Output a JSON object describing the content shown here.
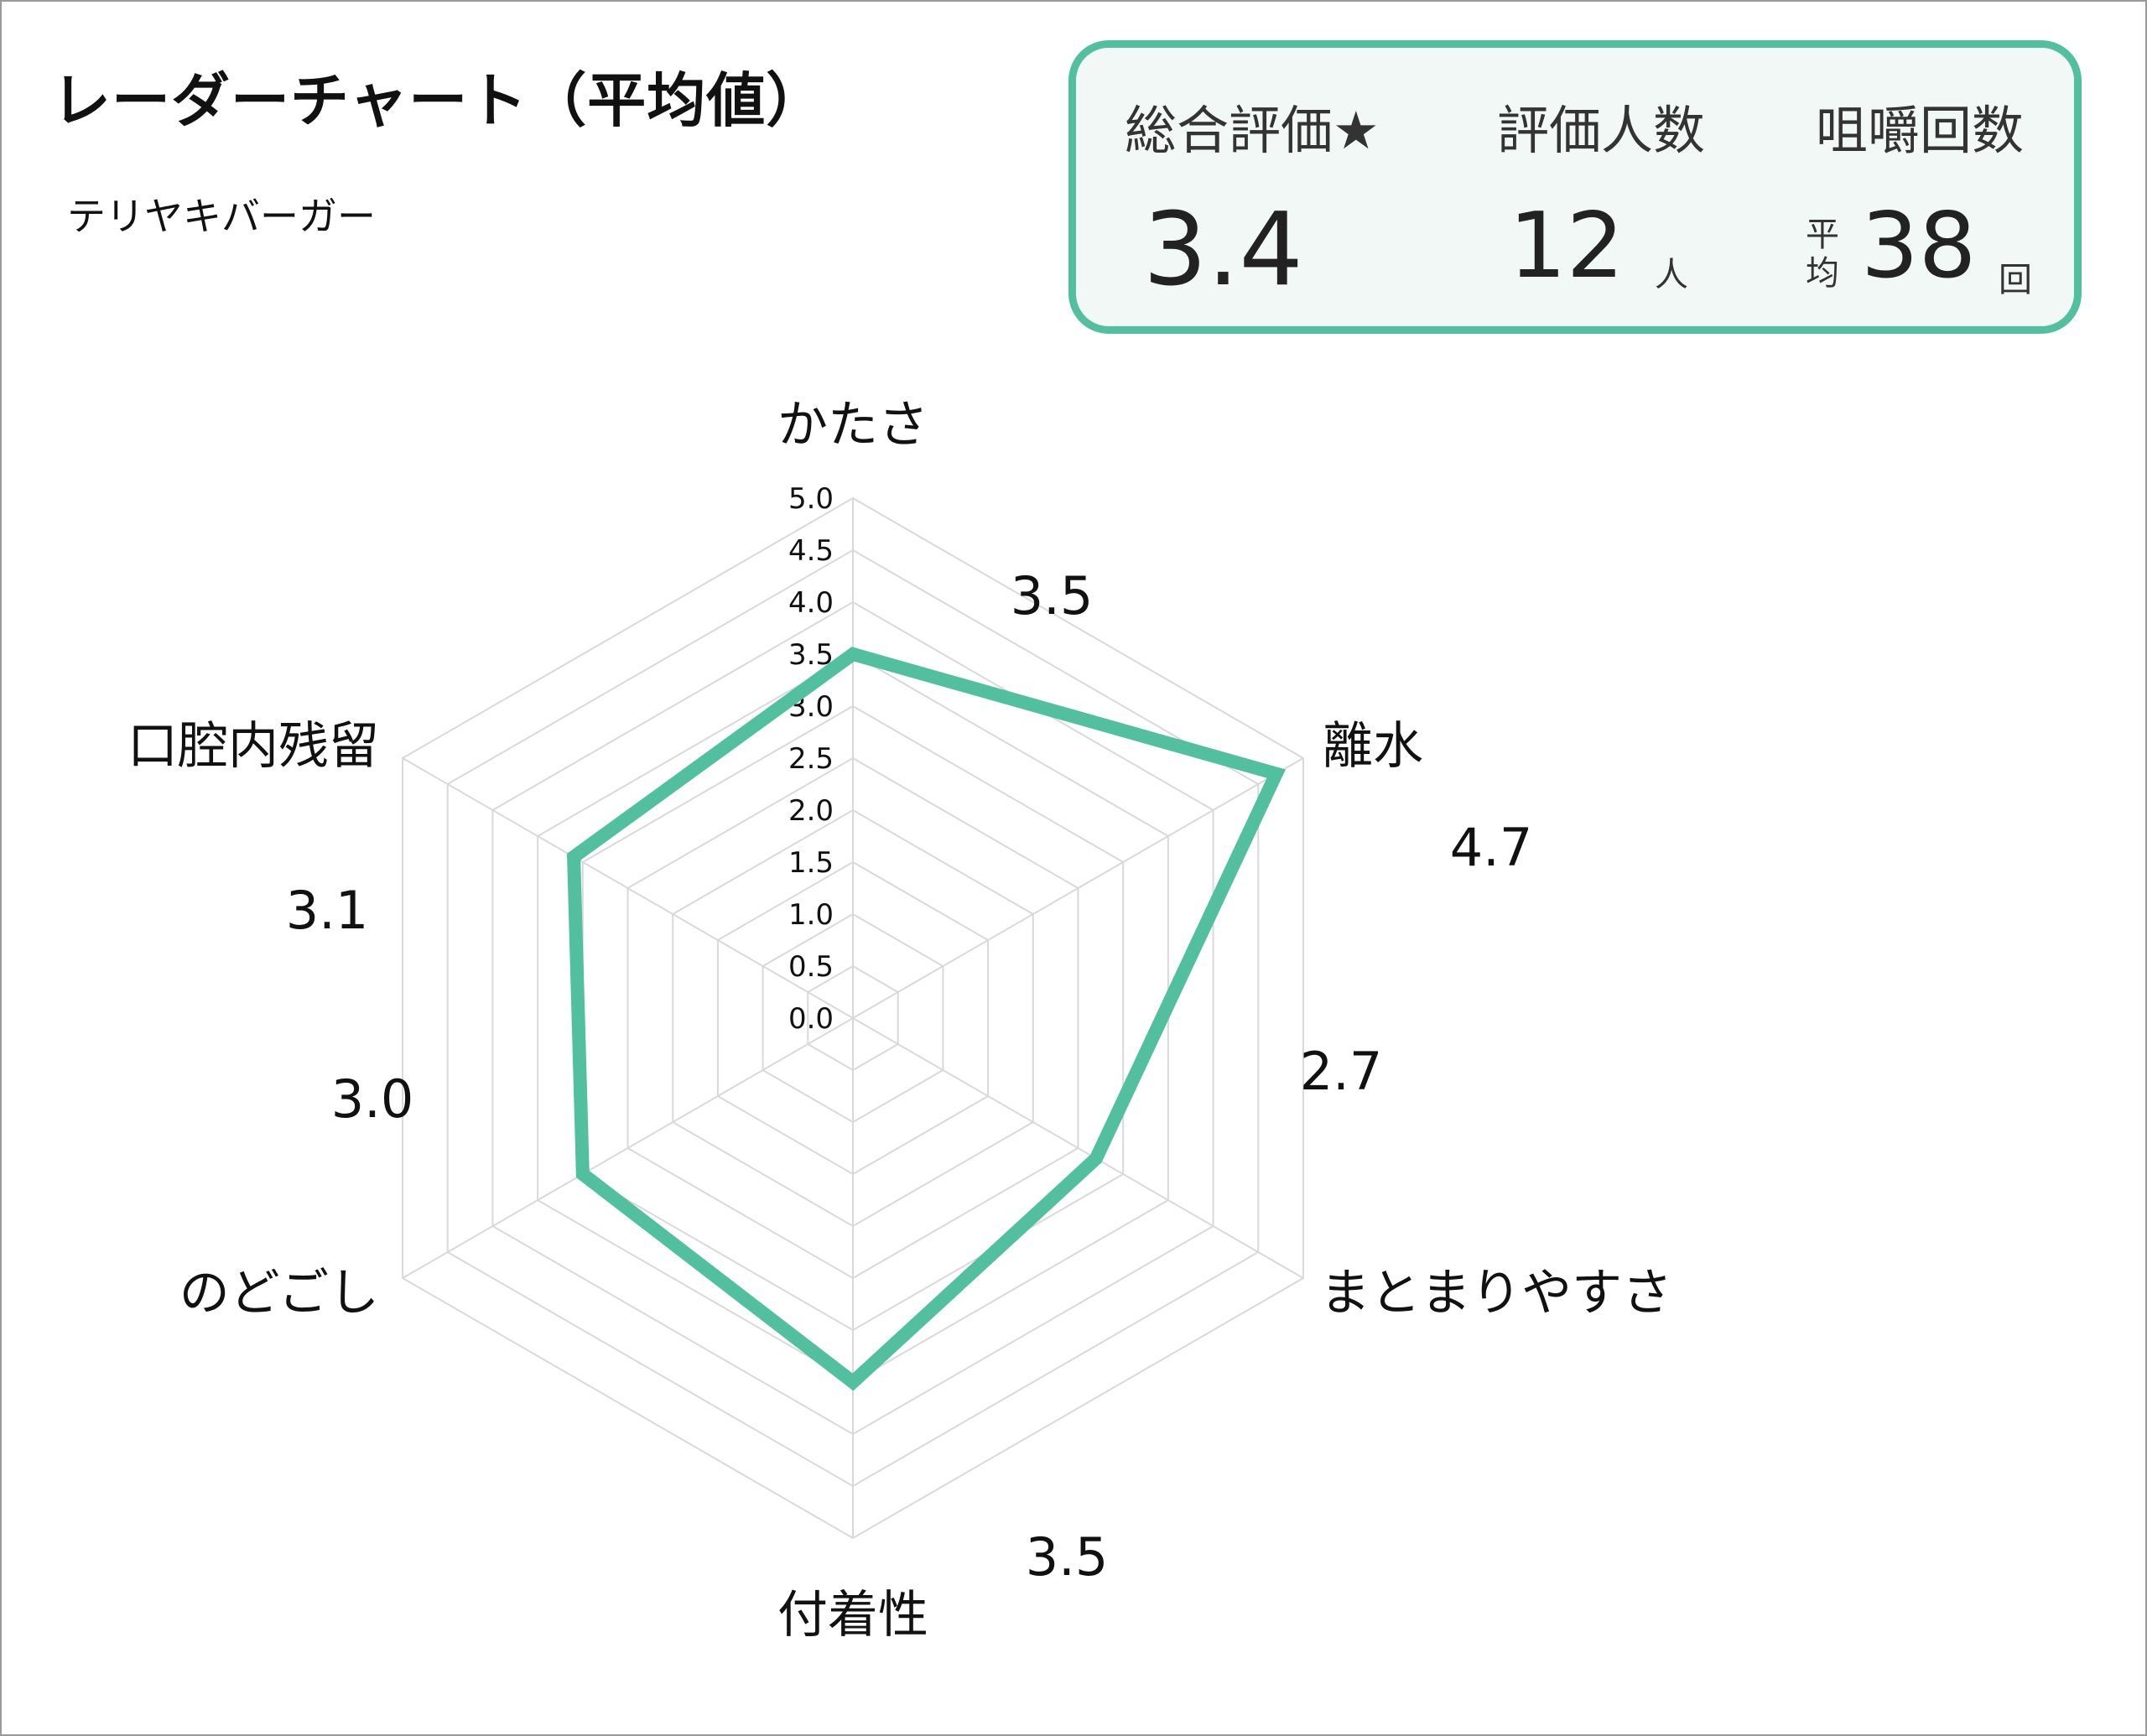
{
  "title": "レーダーチャート（平均値）",
  "subtitle": "テリヤキバーガー",
  "summary": {
    "overall_label": "総合評価★",
    "overall_value": "3.4",
    "people_label": "評価人数",
    "people_value": "12",
    "people_unit": "人",
    "chew_label": "咀嚼回数",
    "chew_prefix_1": "平",
    "chew_prefix_2": "均",
    "chew_value": "38",
    "chew_unit": "回"
  },
  "colors": {
    "accent": "#52bf9f",
    "grid": "#d9d9d9",
    "summary_bg": "#f2f8f6"
  },
  "chart_data": {
    "type": "radar",
    "axes": [
      "かたさ",
      "離水",
      "まとまりやすさ",
      "付着性",
      "のどごし",
      "口腔内残留"
    ],
    "values": [
      3.5,
      4.7,
      2.7,
      3.5,
      3.0,
      3.1
    ],
    "value_labels": [
      "3.5",
      "4.7",
      "2.7",
      "3.5",
      "3.0",
      "3.1"
    ],
    "rlim": [
      0,
      5
    ],
    "ticks": [
      "0.0",
      "0.5",
      "1.0",
      "1.5",
      "2.0",
      "2.5",
      "3.0",
      "3.5",
      "4.0",
      "4.5",
      "5.0"
    ],
    "grid": true
  }
}
